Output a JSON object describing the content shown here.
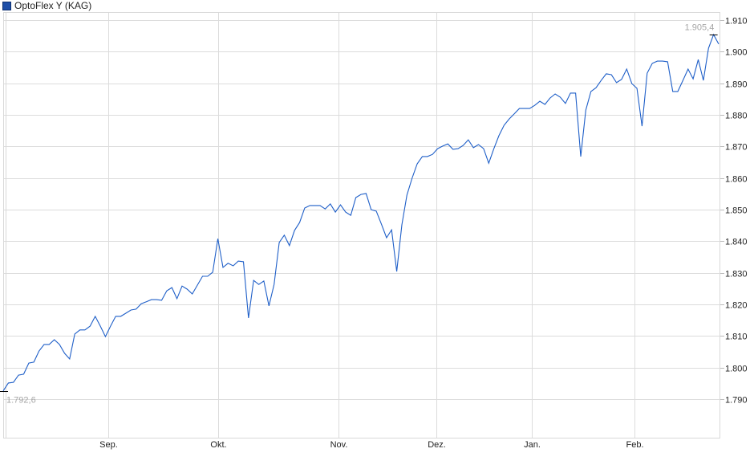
{
  "chart_data": {
    "type": "line",
    "title": "",
    "legend": {
      "position": "top-left",
      "entries": [
        {
          "name": "OptoFlex Y (KAG)",
          "color": "#1f4fa8"
        }
      ]
    },
    "grid": true,
    "ylim": [
      1.78,
      1.913
    ],
    "yticks": [
      {
        "value": 1.91,
        "label": "1.910"
      },
      {
        "value": 1.9,
        "label": "1.900"
      },
      {
        "value": 1.89,
        "label": "1.890"
      },
      {
        "value": 1.88,
        "label": "1.880"
      },
      {
        "value": 1.87,
        "label": "1.870"
      },
      {
        "value": 1.86,
        "label": "1.860"
      },
      {
        "value": 1.85,
        "label": "1.850"
      },
      {
        "value": 1.84,
        "label": "1.840"
      },
      {
        "value": 1.83,
        "label": "1.830"
      },
      {
        "value": 1.82,
        "label": "1.820"
      },
      {
        "value": 1.81,
        "label": "1.810"
      },
      {
        "value": 1.8,
        "label": "1.800"
      },
      {
        "value": 1.79,
        "label": "1.790"
      }
    ],
    "xticks": [
      {
        "label": "Sep.",
        "index": 20.5
      },
      {
        "label": "Okt.",
        "index": 42
      },
      {
        "label": "Nov.",
        "index": 65.6
      },
      {
        "label": "Dez.",
        "index": 84.7
      },
      {
        "label": "Jan.",
        "index": 103.5
      },
      {
        "label": "Feb.",
        "index": 123.5
      }
    ],
    "annotations": {
      "min": {
        "label": "1.792,6",
        "value": 1.7926,
        "index": 0
      },
      "max": {
        "label": "1.905,4",
        "value": 1.9054,
        "index": 139
      }
    },
    "series": [
      {
        "name": "OptoFlex Y (KAG)",
        "color": "#1f5fc8",
        "values": [
          1.7926,
          1.7951,
          1.7953,
          1.7976,
          1.7979,
          1.8014,
          1.8017,
          1.8052,
          1.8073,
          1.8073,
          1.8088,
          1.8073,
          1.8045,
          1.8027,
          1.8106,
          1.8119,
          1.8119,
          1.8131,
          1.8162,
          1.8131,
          1.8098,
          1.8131,
          1.8162,
          1.8162,
          1.8172,
          1.8182,
          1.8185,
          1.8202,
          1.8208,
          1.8215,
          1.8215,
          1.8213,
          1.8243,
          1.8253,
          1.8218,
          1.8258,
          1.8248,
          1.8233,
          1.8261,
          1.8289,
          1.8289,
          1.8302,
          1.8408,
          1.8317,
          1.833,
          1.8322,
          1.8337,
          1.8335,
          1.8157,
          1.8276,
          1.8263,
          1.8274,
          1.8195,
          1.8263,
          1.8396,
          1.8419,
          1.8386,
          1.8434,
          1.8459,
          1.8505,
          1.8513,
          1.8513,
          1.8513,
          1.8502,
          1.8518,
          1.8492,
          1.8515,
          1.8492,
          1.8482,
          1.8538,
          1.8548,
          1.8551,
          1.85,
          1.8495,
          1.8454,
          1.8411,
          1.8436,
          1.8304,
          1.8452,
          1.8546,
          1.8599,
          1.8645,
          1.8668,
          1.8668,
          1.8675,
          1.8693,
          1.8701,
          1.8708,
          1.8691,
          1.8693,
          1.8703,
          1.8721,
          1.8696,
          1.8706,
          1.8693,
          1.8647,
          1.8693,
          1.8734,
          1.8767,
          1.8787,
          1.8803,
          1.882,
          1.882,
          1.882,
          1.883,
          1.8843,
          1.8833,
          1.8853,
          1.8866,
          1.8856,
          1.8836,
          1.8869,
          1.8869,
          1.8668,
          1.8815,
          1.8874,
          1.8886,
          1.8909,
          1.893,
          1.8927,
          1.8902,
          1.8912,
          1.8945,
          1.8899,
          1.8884,
          1.8764,
          1.8932,
          1.8963,
          1.897,
          1.897,
          1.8968,
          1.8874,
          1.8874,
          1.8909,
          1.8945,
          1.8914,
          1.8975,
          1.8909,
          1.9011,
          1.9054,
          1.9024
        ]
      }
    ]
  }
}
